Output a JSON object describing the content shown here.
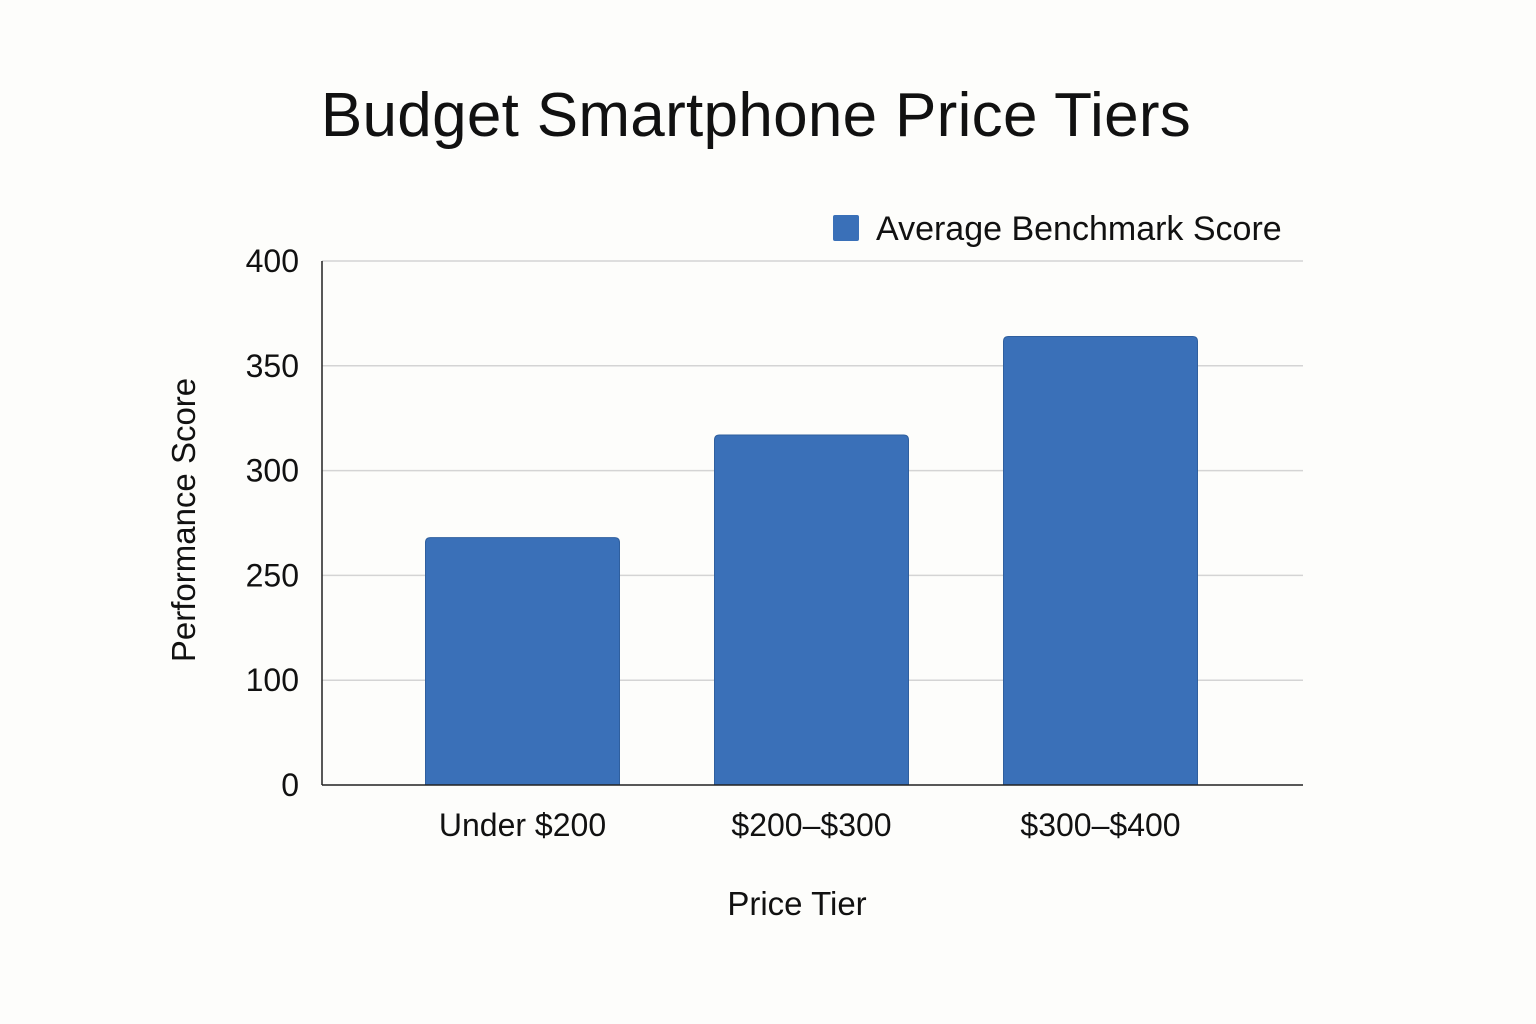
{
  "chart_data": {
    "type": "bar",
    "title": "Budget Smartphone Price Tiers",
    "xlabel": "Price Tier",
    "ylabel": "Performance Score",
    "categories": [
      "Under $200",
      "$200–$300",
      "$300–$400"
    ],
    "series": [
      {
        "name": "Average Benchmark Score",
        "values": [
          268,
          317,
          364
        ],
        "color": "#3a70b8"
      }
    ],
    "yticks": [
      {
        "label": "0",
        "level": 0
      },
      {
        "label": "100",
        "level": 1
      },
      {
        "label": "250",
        "level": 2
      },
      {
        "label": "300",
        "level": 3
      },
      {
        "label": "350",
        "level": 4
      },
      {
        "label": "400",
        "level": 5
      }
    ],
    "ylim": [
      0,
      400
    ],
    "grid": true,
    "legend_position": "top-right"
  }
}
